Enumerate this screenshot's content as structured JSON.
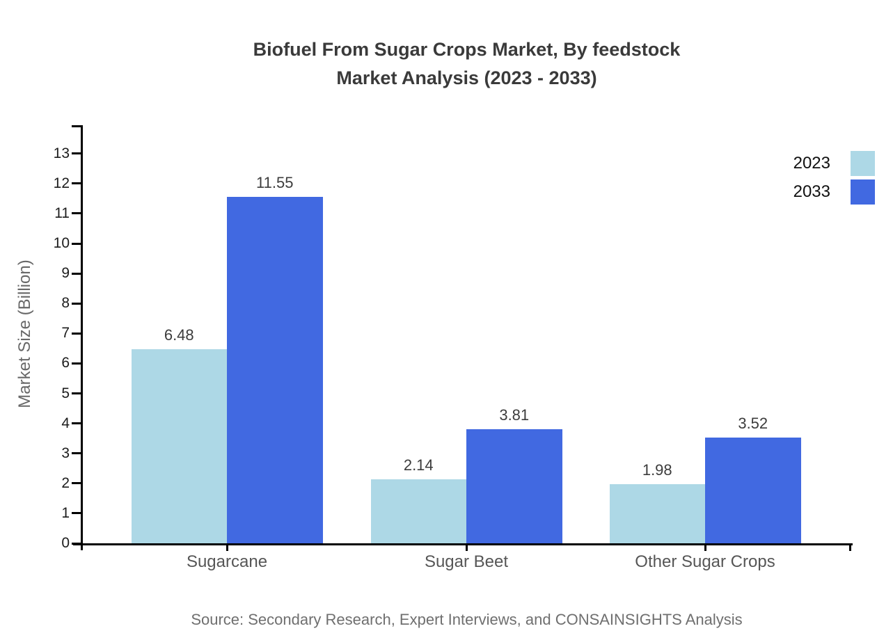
{
  "chart": {
    "title_line1": "Biofuel From Sugar Crops Market, By feedstock",
    "title_line2": "Market Analysis (2023 - 2033)",
    "ylabel": "Market Size (Billion)",
    "source": "Source: Secondary Research, Expert Interviews, and CONSAINSIGHTS Analysis"
  },
  "chart_data": {
    "type": "bar",
    "title": "Biofuel From Sugar Crops Market, By feedstock Market Analysis (2023 - 2033)",
    "categories": [
      "Sugarcane",
      "Sugar Beet",
      "Other Sugar Crops"
    ],
    "series": [
      {
        "name": "2023",
        "color": "#ADD8E6",
        "values": [
          6.48,
          2.14,
          1.98
        ]
      },
      {
        "name": "2033",
        "color": "#4169E1",
        "values": [
          11.55,
          3.81,
          3.52
        ]
      }
    ],
    "value_labels": [
      "6.48",
      "11.55",
      "2.14",
      "3.81",
      "1.98",
      "3.52"
    ],
    "xlabel": "",
    "ylabel": "Market Size (Billion)",
    "ylim": [
      0,
      13.9
    ],
    "yticks": [
      0,
      1,
      2,
      3,
      4,
      5,
      6,
      7,
      8,
      9,
      10,
      11,
      12,
      13
    ],
    "grid": false,
    "legend_position": "upper-right-outside",
    "axis_color": "#000000",
    "background": "#ffffff"
  }
}
